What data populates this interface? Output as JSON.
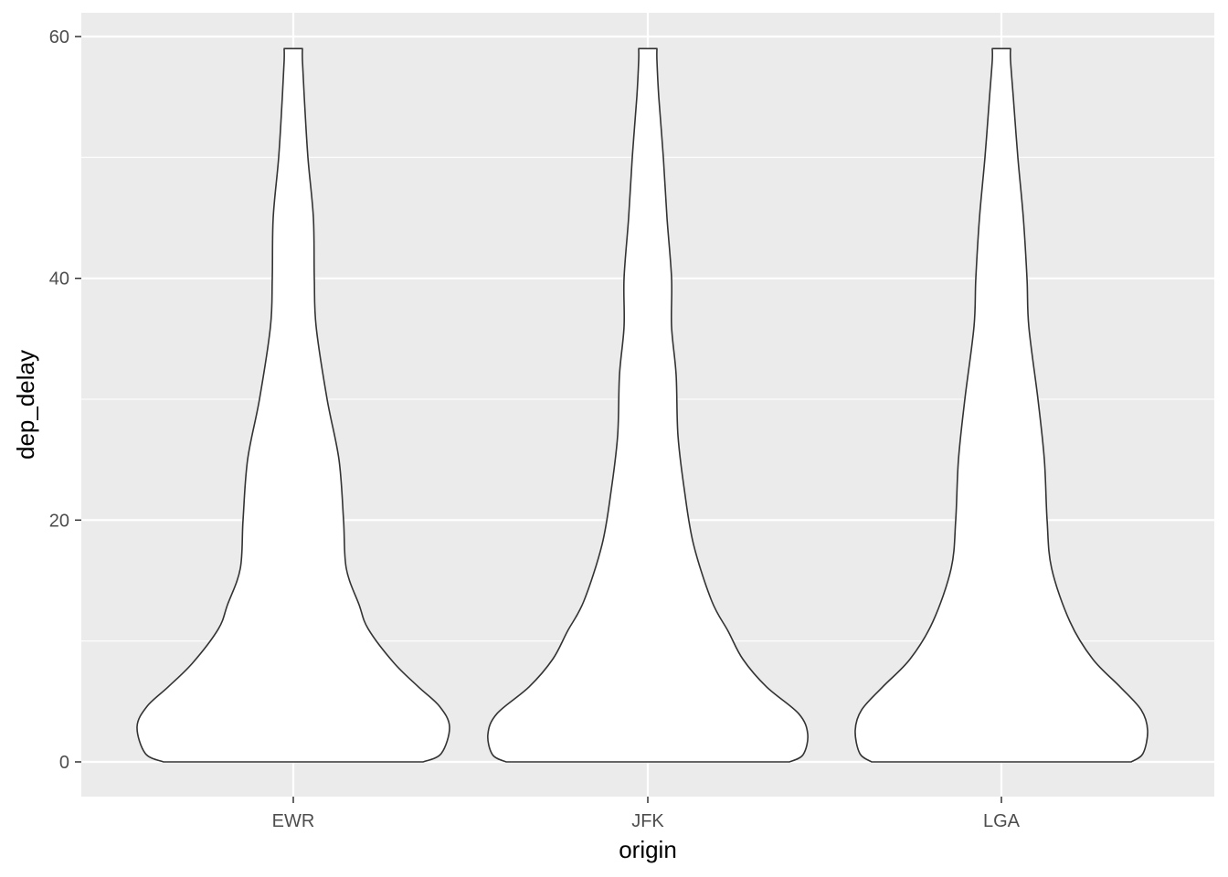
{
  "chart_data": {
    "type": "violin",
    "xlabel": "origin",
    "ylabel": "dep_delay",
    "categories": [
      "EWR",
      "JFK",
      "LGA"
    ],
    "ylim": [
      -3,
      61.8
    ],
    "yticks": [
      0,
      20,
      40,
      60
    ],
    "ytick_labels": [
      "0",
      "20",
      "40",
      "60"
    ],
    "grid": true,
    "colors": {
      "panel_bg": "#ebebeb",
      "grid": "#ffffff",
      "violin_fill": "#ffffff",
      "violin_stroke": "#333333"
    },
    "violins": [
      {
        "category": "EWR",
        "y_min": 0,
        "y_max": 59,
        "density_profile": [
          {
            "y": 0,
            "half_width": 142
          },
          {
            "y": 0.7,
            "half_width": 162
          },
          {
            "y": 2.9,
            "half_width": 171
          },
          {
            "y": 4.6,
            "half_width": 160
          },
          {
            "y": 6.2,
            "half_width": 137
          },
          {
            "y": 8.2,
            "half_width": 110
          },
          {
            "y": 11,
            "half_width": 82
          },
          {
            "y": 13,
            "half_width": 72
          },
          {
            "y": 16,
            "half_width": 58
          },
          {
            "y": 20,
            "half_width": 55
          },
          {
            "y": 25,
            "half_width": 50
          },
          {
            "y": 30,
            "half_width": 37
          },
          {
            "y": 36,
            "half_width": 25
          },
          {
            "y": 40,
            "half_width": 23
          },
          {
            "y": 45,
            "half_width": 22
          },
          {
            "y": 50,
            "half_width": 16
          },
          {
            "y": 55,
            "half_width": 12
          },
          {
            "y": 58,
            "half_width": 10
          },
          {
            "y": 59,
            "half_width": 10
          }
        ]
      },
      {
        "category": "JFK",
        "y_min": 0,
        "y_max": 59,
        "density_profile": [
          {
            "y": 0,
            "half_width": 155
          },
          {
            "y": 0.6,
            "half_width": 170
          },
          {
            "y": 2.3,
            "half_width": 175
          },
          {
            "y": 4,
            "half_width": 165
          },
          {
            "y": 6.2,
            "half_width": 130
          },
          {
            "y": 8.5,
            "half_width": 104
          },
          {
            "y": 10.8,
            "half_width": 88
          },
          {
            "y": 13.3,
            "half_width": 70
          },
          {
            "y": 18,
            "half_width": 50
          },
          {
            "y": 22.5,
            "half_width": 40
          },
          {
            "y": 27,
            "half_width": 33
          },
          {
            "y": 32,
            "half_width": 31
          },
          {
            "y": 36,
            "half_width": 26
          },
          {
            "y": 40,
            "half_width": 26
          },
          {
            "y": 45,
            "half_width": 21
          },
          {
            "y": 50,
            "half_width": 17
          },
          {
            "y": 55,
            "half_width": 12
          },
          {
            "y": 58,
            "half_width": 10
          },
          {
            "y": 59,
            "half_width": 10
          }
        ]
      },
      {
        "category": "LGA",
        "y_min": 0,
        "y_max": 59,
        "density_profile": [
          {
            "y": 0,
            "half_width": 142
          },
          {
            "y": 0.7,
            "half_width": 155
          },
          {
            "y": 2.6,
            "half_width": 160
          },
          {
            "y": 4.3,
            "half_width": 153
          },
          {
            "y": 6.2,
            "half_width": 130
          },
          {
            "y": 8.5,
            "half_width": 100
          },
          {
            "y": 11.6,
            "half_width": 75
          },
          {
            "y": 16,
            "half_width": 55
          },
          {
            "y": 20,
            "half_width": 50
          },
          {
            "y": 25,
            "half_width": 47
          },
          {
            "y": 30,
            "half_width": 40
          },
          {
            "y": 36,
            "half_width": 30
          },
          {
            "y": 40,
            "half_width": 28
          },
          {
            "y": 45,
            "half_width": 24
          },
          {
            "y": 50,
            "half_width": 18
          },
          {
            "y": 55,
            "half_width": 13
          },
          {
            "y": 58,
            "half_width": 10
          },
          {
            "y": 59,
            "half_width": 10
          }
        ]
      }
    ]
  }
}
